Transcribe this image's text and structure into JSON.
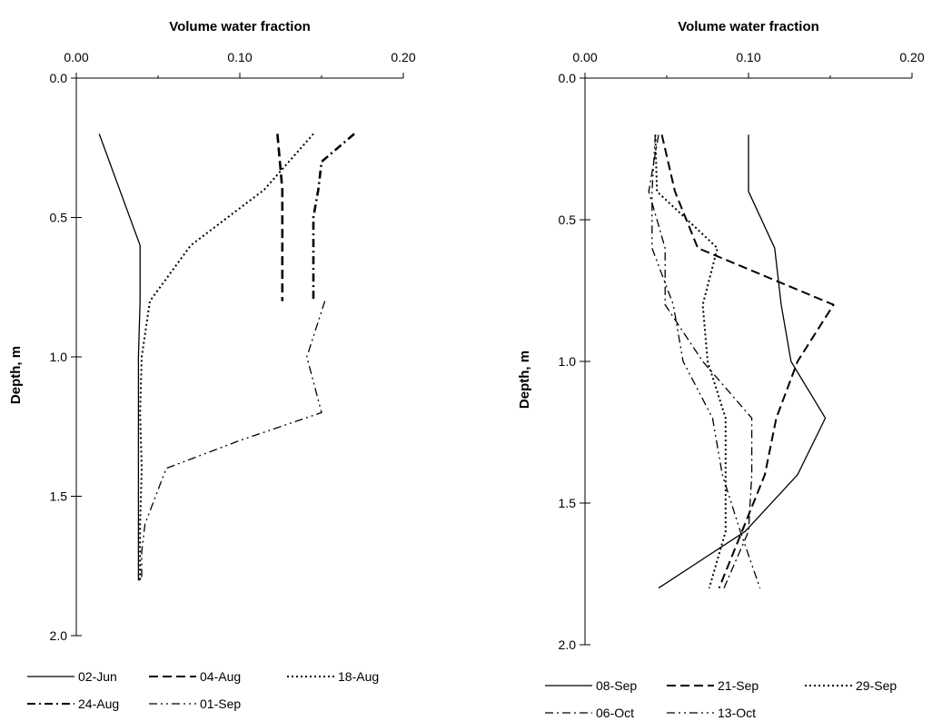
{
  "chart_data": [
    {
      "type": "line",
      "orientation": "depth-profile",
      "xlabel": "Volume water fraction",
      "ylabel": "Depth, m",
      "xlim": [
        0,
        0.2
      ],
      "ylim": [
        0,
        2.0
      ],
      "y_inverted": true,
      "x_axis_position": "top",
      "grid": false,
      "legend_position": "bottom",
      "x_ticks": [
        "0.00",
        "0.10",
        "0.20"
      ],
      "y_ticks": [
        "0.0",
        "0.5",
        "1.0",
        "1.5",
        "2.0"
      ],
      "series": [
        {
          "name": "02-Jun",
          "style": "solid",
          "width": 1.3,
          "x": [
            0.014,
            0.039,
            0.039,
            0.038,
            0.038,
            0.038,
            0.038,
            0.038,
            0.039
          ],
          "y": [
            0.2,
            0.6,
            0.8,
            1.0,
            1.2,
            1.4,
            1.6,
            1.8,
            1.8
          ]
        },
        {
          "name": "04-Aug",
          "style": "dashed",
          "width": 2.6,
          "x": [
            0.123,
            0.126,
            0.126,
            0.126,
            0.126,
            0.126,
            0.126,
            0.126,
            0.126
          ],
          "y": [
            0.2,
            0.4,
            0.6,
            0.8,
            0.8,
            0.8,
            0.8,
            0.8,
            0.8
          ]
        },
        {
          "name": "18-Aug",
          "style": "dotted",
          "width": 2.0,
          "x": [
            0.145,
            0.115,
            0.07,
            0.045,
            0.04,
            0.039,
            0.04,
            0.039,
            0.039
          ],
          "y": [
            0.2,
            0.4,
            0.6,
            0.8,
            1.0,
            1.2,
            1.4,
            1.6,
            1.8
          ]
        },
        {
          "name": "24-Aug",
          "style": "dashdot",
          "width": 2.6,
          "x": [
            0.17,
            0.15,
            0.148,
            0.145,
            0.145,
            0.145,
            0.145,
            0.145,
            0.145
          ],
          "y": [
            0.2,
            0.3,
            0.4,
            0.5,
            0.6,
            0.7,
            0.8,
            0.8,
            0.8
          ]
        },
        {
          "name": "01-Sep",
          "style": "dashdotdot",
          "width": 1.3,
          "x": [
            0.152,
            0.141,
            0.15,
            0.1,
            0.055,
            0.042,
            0.04,
            0.04,
            0.04
          ],
          "y": [
            0.8,
            1.0,
            1.2,
            1.3,
            1.4,
            1.6,
            1.7,
            1.8,
            1.8
          ]
        }
      ]
    },
    {
      "type": "line",
      "orientation": "depth-profile",
      "xlabel": "Volume water fraction",
      "ylabel": "Depth, m",
      "xlim": [
        0,
        0.2
      ],
      "ylim": [
        0,
        2.0
      ],
      "y_inverted": true,
      "x_axis_position": "top",
      "grid": false,
      "legend_position": "bottom",
      "x_ticks": [
        "0.00",
        "0.10",
        "0.20"
      ],
      "y_ticks": [
        "0.0",
        "0.5",
        "1.0",
        "1.5",
        "2.0"
      ],
      "series": [
        {
          "name": "08-Sep",
          "style": "solid",
          "width": 1.3,
          "x": [
            0.1,
            0.1,
            0.116,
            0.12,
            0.126,
            0.147,
            0.13,
            0.098,
            0.045
          ],
          "y": [
            0.2,
            0.4,
            0.6,
            0.8,
            1.0,
            1.2,
            1.4,
            1.6,
            1.8
          ]
        },
        {
          "name": "21-Sep",
          "style": "dashed",
          "width": 2.0,
          "x": [
            0.047,
            0.055,
            0.069,
            0.152,
            0.13,
            0.117,
            0.11,
            0.096,
            0.082
          ],
          "y": [
            0.2,
            0.4,
            0.6,
            0.8,
            1.0,
            1.2,
            1.4,
            1.6,
            1.8
          ]
        },
        {
          "name": "29-Sep",
          "style": "dotted",
          "width": 2.0,
          "x": [
            0.043,
            0.044,
            0.081,
            0.072,
            0.075,
            0.086,
            0.086,
            0.086,
            0.076
          ],
          "y": [
            0.2,
            0.4,
            0.6,
            0.8,
            1.0,
            1.2,
            1.4,
            1.6,
            1.8
          ]
        },
        {
          "name": "06-Oct",
          "style": "dashdot",
          "width": 1.3,
          "x": [
            0.045,
            0.039,
            0.049,
            0.049,
            0.072,
            0.102,
            0.102,
            0.1,
            0.085
          ],
          "y": [
            0.2,
            0.4,
            0.6,
            0.8,
            1.0,
            1.2,
            1.4,
            1.6,
            1.8
          ]
        },
        {
          "name": "13-Oct",
          "style": "dashdotdot",
          "width": 1.3,
          "x": [
            0.043,
            0.041,
            0.041,
            0.054,
            0.06,
            0.078,
            0.084,
            0.095,
            0.107
          ],
          "y": [
            0.2,
            0.4,
            0.6,
            0.8,
            1.0,
            1.2,
            1.4,
            1.6,
            1.8
          ]
        }
      ]
    }
  ]
}
